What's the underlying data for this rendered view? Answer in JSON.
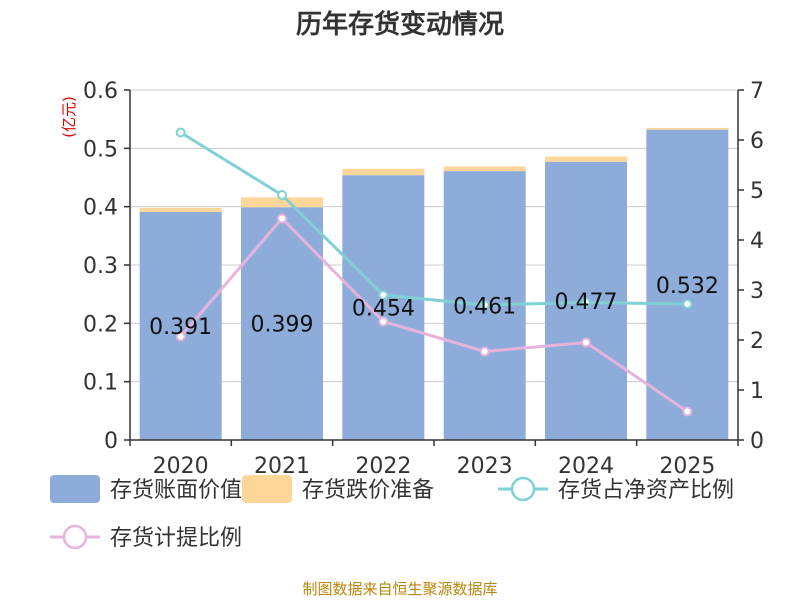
{
  "chart_data": {
    "type": "bar",
    "title": "历年存货变动情况",
    "unit_label": "(亿元)",
    "categories": [
      "2020",
      "2021",
      "2022",
      "2023",
      "2024",
      "2025"
    ],
    "ylim_left": [
      0,
      0.6
    ],
    "yticks_left": [
      "0",
      "0.1",
      "0.2",
      "0.3",
      "0.4",
      "0.5",
      "0.6"
    ],
    "ylim_right": [
      0,
      7
    ],
    "yticks_right": [
      "0",
      "1",
      "2",
      "3",
      "4",
      "5",
      "6",
      "7"
    ],
    "grid": "horizontal",
    "legend_position": "bottom",
    "series": [
      {
        "name": "存货账面价值",
        "type": "bar",
        "stack": "inventory",
        "axis": "left",
        "color": "#8eacd9",
        "values": [
          0.391,
          0.399,
          0.454,
          0.461,
          0.477,
          0.532
        ],
        "labels": [
          "0.391",
          "0.399",
          "0.454",
          "0.461",
          "0.477",
          "0.532"
        ]
      },
      {
        "name": "存货跌价准备",
        "type": "bar",
        "stack": "inventory",
        "axis": "left",
        "color": "#ffd699",
        "values": [
          0.007,
          0.017,
          0.011,
          0.008,
          0.009,
          0.003
        ]
      },
      {
        "name": "存货占净资产比例",
        "type": "line",
        "axis": "right",
        "color": "#7fd1d6",
        "values": [
          6.15,
          4.9,
          2.9,
          2.7,
          2.75,
          2.72
        ]
      },
      {
        "name": "存货计提比例",
        "type": "line",
        "axis": "right",
        "color": "#e6b3dc",
        "values": [
          2.07,
          4.43,
          2.37,
          1.77,
          1.95,
          0.57
        ]
      }
    ]
  },
  "source": "制图数据来自恒生聚源数据库"
}
